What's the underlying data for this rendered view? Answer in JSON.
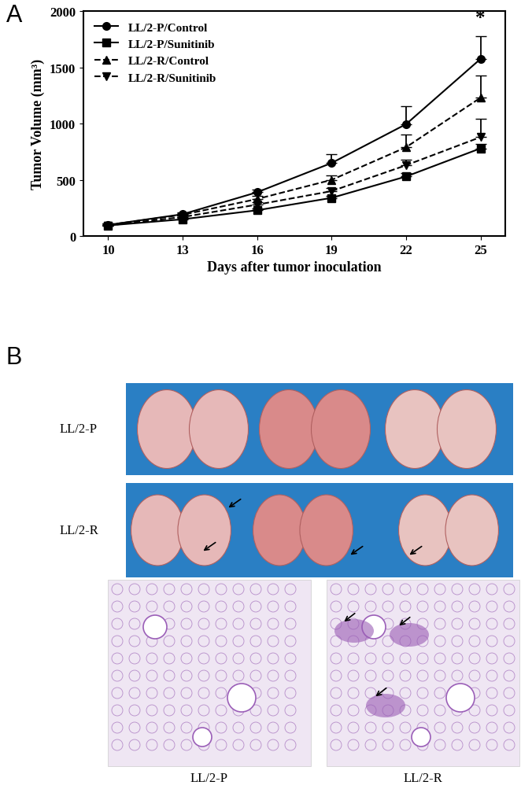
{
  "chart_data": {
    "type": "line",
    "panel_label": "A",
    "x_label": "Days after tumor inoculation",
    "y_label": "Tumor Volume (mm³)",
    "x": [
      10,
      13,
      16,
      19,
      22,
      25
    ],
    "xlim": [
      9,
      26
    ],
    "xticks": [
      10,
      13,
      16,
      19,
      22,
      25
    ],
    "ylim": [
      0,
      2000
    ],
    "yticks": [
      0,
      500,
      1000,
      1500,
      2000
    ],
    "legend": "upper left",
    "series": [
      {
        "name": "LL/2-P/Control",
        "color": "#000000",
        "marker": "o",
        "line_style": "solid",
        "values": [
          100,
          195,
          390,
          650,
          995,
          1575
        ],
        "error": [
          10,
          15,
          25,
          80,
          160,
          200
        ]
      },
      {
        "name": "LL/2-P/Sunitinib",
        "color": "#000000",
        "marker": "s",
        "line_style": "solid",
        "values": [
          95,
          150,
          230,
          340,
          530,
          780
        ],
        "error": [
          5,
          10,
          15,
          20,
          30,
          40
        ]
      },
      {
        "name": "LL/2-R/Control",
        "color": "#000000",
        "marker": "^",
        "line_style": "dashed",
        "values": [
          100,
          190,
          330,
          500,
          790,
          1230
        ],
        "error": [
          10,
          15,
          25,
          40,
          110,
          200
        ]
      },
      {
        "name": "LL/2-R/Sunitinib",
        "color": "#000000",
        "marker": "v",
        "line_style": "dashed",
        "values": [
          95,
          170,
          280,
          400,
          630,
          880
        ],
        "error": [
          10,
          15,
          20,
          30,
          50,
          160
        ]
      }
    ],
    "annotations": [
      {
        "text": "*",
        "x": 25,
        "y": 1860
      }
    ]
  },
  "panel_b": {
    "panel_label": "B",
    "photo_rows": [
      "LL/2-P",
      "LL/2-R"
    ],
    "histology_labels": [
      "LL/2-P",
      "LL/2-R"
    ]
  }
}
